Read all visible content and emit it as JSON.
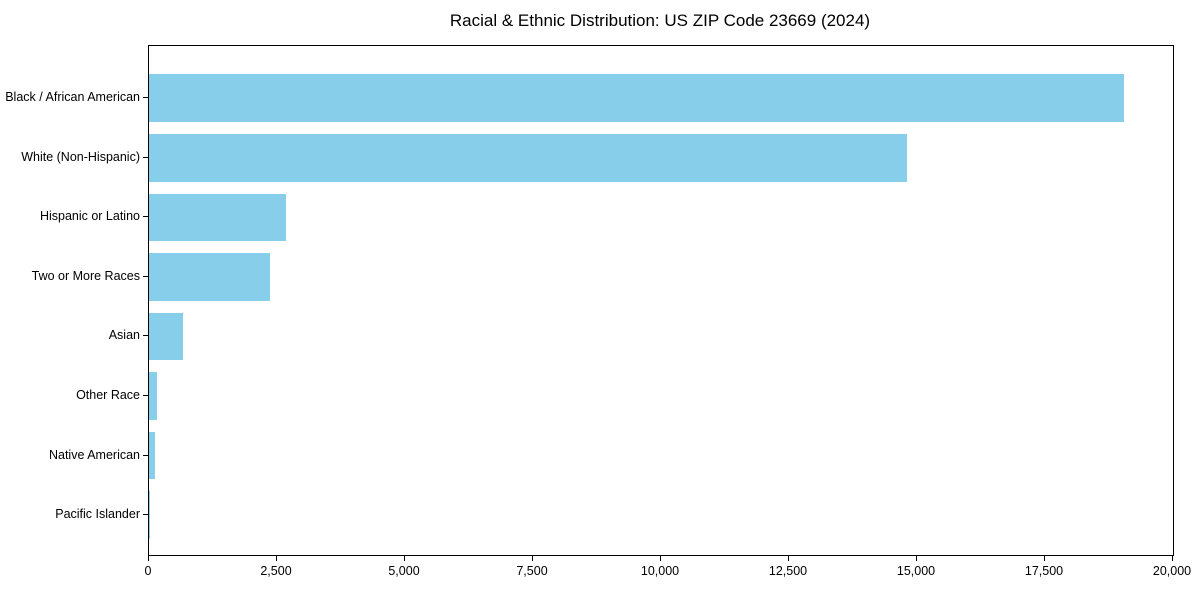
{
  "chart_data": {
    "type": "bar",
    "orientation": "horizontal",
    "title": "Racial & Ethnic Distribution: US ZIP Code 23669 (2024)",
    "categories": [
      "Black / African American",
      "White (Non-Hispanic)",
      "Hispanic or Latino",
      "Two or More Races",
      "Asian",
      "Other Race",
      "Native American",
      "Pacific Islander"
    ],
    "values": [
      19050,
      14800,
      2675,
      2360,
      660,
      160,
      125,
      10
    ],
    "xlabel": "",
    "ylabel": "",
    "xlim": [
      0,
      20000
    ],
    "x_ticks": [
      0,
      2500,
      5000,
      7500,
      10000,
      12500,
      15000,
      17500,
      20000
    ],
    "x_tick_labels": [
      "0",
      "2,500",
      "5,000",
      "7,500",
      "10,000",
      "12,500",
      "15,000",
      "17,500",
      "20,000"
    ],
    "bar_color": "#87CEEB",
    "grid": false,
    "legend": null
  }
}
